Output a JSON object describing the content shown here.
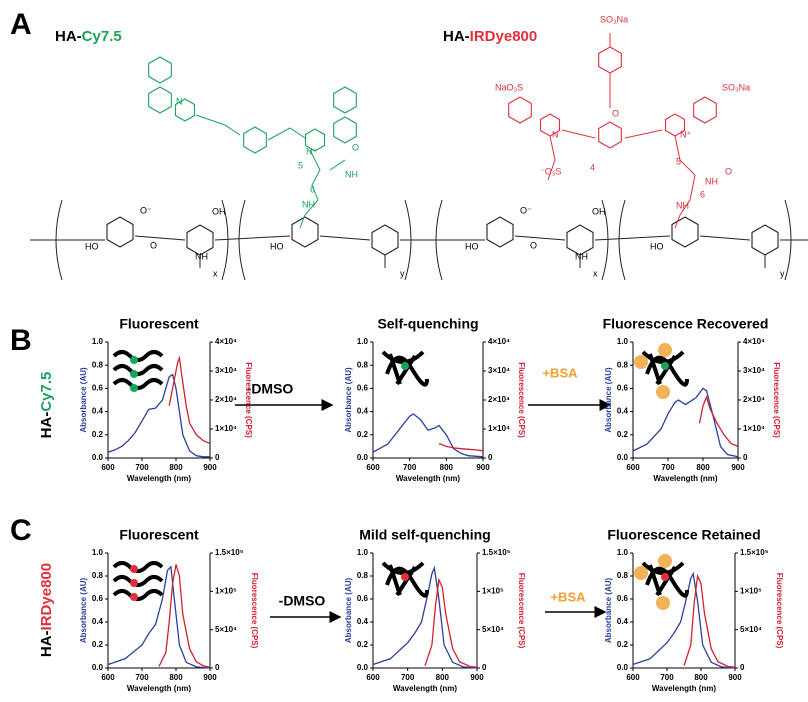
{
  "panel_labels": [
    "A",
    "B",
    "C"
  ],
  "panel_a": {
    "structures": [
      {
        "prefix": "HA-",
        "dye": "Cy7.5",
        "labels": [
          "N",
          "N⁺",
          "5",
          "6",
          "O",
          "NH",
          "NH",
          "O⁻",
          "O",
          "HO",
          "HO",
          "OH",
          "NH",
          "x",
          "y"
        ]
      },
      {
        "prefix": "HA-",
        "dye": "IRDye800",
        "labels": [
          "SO₃Na",
          "NaO₃S",
          "SO₃Na",
          "O",
          "N",
          "N⁺",
          "⁻O₃S",
          "4",
          "5",
          "6",
          "O",
          "NH",
          "NH",
          "O⁻",
          "O",
          "HO",
          "HO",
          "OH",
          "NH",
          "x",
          "y"
        ]
      }
    ]
  },
  "rows": [
    {
      "prefix": "HA-",
      "dye": "Cy7.5"
    },
    {
      "prefix": "HA-",
      "dye": "IRDye800"
    }
  ],
  "arrows": [
    {
      "label": "-DMSO"
    },
    {
      "label": "+BSA"
    },
    {
      "label": "-DMSO"
    },
    {
      "label": "+BSA"
    }
  ],
  "chart_data": [
    {
      "type": "line",
      "title": "Fluorescent",
      "x_label": "Wavelength (nm)",
      "y_label": "Absorbance (AU)",
      "y2_label": "Fluorescence (CPS)",
      "xlim": [
        600,
        900
      ],
      "xticks": [
        600,
        700,
        800,
        900
      ],
      "ylim": [
        0,
        1
      ],
      "yticks": [
        {
          "value": 0,
          "label": "0.0"
        },
        0.2,
        0.4,
        0.6,
        0.8,
        {
          "value": 1,
          "label": "1.0"
        }
      ],
      "y2lim": [
        0,
        40000
      ],
      "y2ticks": [
        0,
        {
          "value": 10000,
          "label": "1×10⁴"
        },
        {
          "value": 20000,
          "label": "2×10⁴"
        },
        {
          "value": 30000,
          "label": "3×10⁴"
        },
        {
          "value": 40000,
          "label": "4×10⁴"
        }
      ],
      "series": [
        {
          "color": "#2b3f9e",
          "axis": "y",
          "x": [
            600,
            620,
            640,
            660,
            680,
            700,
            720,
            740,
            760,
            780,
            790,
            800,
            820,
            840,
            860,
            880,
            900
          ],
          "values": [
            0.05,
            0.07,
            0.1,
            0.15,
            0.22,
            0.32,
            0.42,
            0.43,
            0.5,
            0.7,
            0.72,
            0.6,
            0.2,
            0.06,
            0.02,
            0.01,
            0.01
          ]
        },
        {
          "color": "#d3202f",
          "axis": "y2",
          "x": [
            780,
            790,
            800,
            805,
            810,
            820,
            830,
            840,
            860,
            880,
            900
          ],
          "values": [
            18000,
            24000,
            30000,
            33000,
            34500,
            26000,
            18000,
            12000,
            8000,
            6000,
            5000
          ]
        }
      ]
    },
    {
      "type": "line",
      "title": "Self-quenching",
      "x_label": "Wavelength (nm)",
      "y_label": "Absorbance (AU)",
      "y2_label": "Fluorescence (CPS)",
      "xlim": [
        600,
        900
      ],
      "xticks": [
        600,
        700,
        800,
        900
      ],
      "ylim": [
        0,
        1
      ],
      "yticks": [
        {
          "value": 0,
          "label": "0.0"
        },
        0.2,
        0.4,
        0.6,
        0.8,
        {
          "value": 1,
          "label": "1.0"
        }
      ],
      "y2lim": [
        0,
        40000
      ],
      "y2ticks": [
        0,
        {
          "value": 10000,
          "label": "1×10⁴"
        },
        {
          "value": 20000,
          "label": "2×10⁴"
        },
        {
          "value": 30000,
          "label": "3×10⁴"
        },
        {
          "value": 40000,
          "label": "4×10⁴"
        }
      ],
      "series": [
        {
          "color": "#2b3f9e",
          "axis": "y",
          "x": [
            600,
            640,
            680,
            700,
            710,
            730,
            750,
            770,
            780,
            800,
            820,
            840,
            860,
            900
          ],
          "values": [
            0.05,
            0.12,
            0.28,
            0.36,
            0.38,
            0.33,
            0.24,
            0.26,
            0.28,
            0.2,
            0.08,
            0.04,
            0.02,
            0.01
          ]
        },
        {
          "color": "#d3202f",
          "axis": "y2",
          "x": [
            780,
            800,
            820,
            840,
            860,
            880,
            900
          ],
          "values": [
            5000,
            4000,
            3500,
            3200,
            3000,
            2800,
            2500
          ]
        }
      ]
    },
    {
      "type": "line",
      "title": "Fluorescence Recovered",
      "x_label": "Wavelength (nm)",
      "y_label": "Absorbance (AU)",
      "y2_label": "Fluorescence (CPS)",
      "xlim": [
        600,
        900
      ],
      "xticks": [
        600,
        700,
        800,
        900
      ],
      "ylim": [
        0,
        1
      ],
      "yticks": [
        {
          "value": 0,
          "label": "0.0"
        },
        0.2,
        0.4,
        0.6,
        0.8,
        {
          "value": 1,
          "label": "1.0"
        }
      ],
      "y2lim": [
        0,
        40000
      ],
      "y2ticks": [
        0,
        {
          "value": 10000,
          "label": "1×10⁴"
        },
        {
          "value": 20000,
          "label": "2×10⁴"
        },
        {
          "value": 30000,
          "label": "3×10⁴"
        },
        {
          "value": 40000,
          "label": "4×10⁴"
        }
      ],
      "series": [
        {
          "color": "#2b3f9e",
          "axis": "y",
          "x": [
            600,
            640,
            680,
            700,
            720,
            730,
            750,
            780,
            800,
            810,
            830,
            850,
            870,
            900
          ],
          "values": [
            0.06,
            0.12,
            0.25,
            0.38,
            0.48,
            0.5,
            0.46,
            0.52,
            0.6,
            0.58,
            0.35,
            0.1,
            0.03,
            0.01
          ]
        },
        {
          "color": "#d3202f",
          "axis": "y2",
          "x": [
            790,
            800,
            810,
            820,
            840,
            860,
            880,
            900
          ],
          "values": [
            12000,
            18000,
            21000,
            17000,
            12000,
            8000,
            5000,
            4000
          ]
        }
      ]
    },
    {
      "type": "line",
      "title": "Fluorescent",
      "x_label": "Wavelength (nm)",
      "y_label": "Absorbance (AU)",
      "y2_label": "Fluorescence (CPS)",
      "xlim": [
        600,
        900
      ],
      "xticks": [
        600,
        700,
        800,
        900
      ],
      "ylim": [
        0,
        1
      ],
      "yticks": [
        {
          "value": 0,
          "label": "0.0"
        },
        0.2,
        0.4,
        0.6,
        0.8,
        {
          "value": 1,
          "label": "1.0"
        }
      ],
      "y2lim": [
        0,
        150000
      ],
      "y2ticks": [
        0,
        {
          "value": 50000,
          "label": "5×10⁴"
        },
        {
          "value": 100000,
          "label": "1×10⁵"
        },
        {
          "value": 150000,
          "label": "1.5×10⁵"
        }
      ],
      "series": [
        {
          "color": "#2b3f9e",
          "axis": "y",
          "x": [
            600,
            650,
            700,
            720,
            740,
            760,
            775,
            785,
            795,
            810,
            830,
            860,
            900
          ],
          "values": [
            0.03,
            0.08,
            0.2,
            0.3,
            0.38,
            0.6,
            0.85,
            0.88,
            0.6,
            0.2,
            0.05,
            0.01,
            0
          ]
        },
        {
          "color": "#d3202f",
          "axis": "y2",
          "x": [
            750,
            770,
            780,
            790,
            800,
            810,
            820,
            840,
            860,
            880,
            900
          ],
          "values": [
            2000,
            20000,
            60000,
            110000,
            135000,
            120000,
            70000,
            25000,
            8000,
            3000,
            1000
          ]
        }
      ]
    },
    {
      "type": "line",
      "title": "Mild self-quenching",
      "x_label": "Wavelength (nm)",
      "y_label": "Absorbance (AU)",
      "y2_label": "Fluorescence (CPS)",
      "xlim": [
        600,
        900
      ],
      "xticks": [
        600,
        700,
        800,
        900
      ],
      "ylim": [
        0,
        1
      ],
      "yticks": [
        {
          "value": 0,
          "label": "0.0"
        },
        0.2,
        0.4,
        0.6,
        0.8,
        {
          "value": 1,
          "label": "1.0"
        }
      ],
      "y2lim": [
        0,
        150000
      ],
      "y2ticks": [
        0,
        {
          "value": 50000,
          "label": "5×10⁴"
        },
        {
          "value": 100000,
          "label": "1×10⁵"
        },
        {
          "value": 150000,
          "label": "1.5×10⁵"
        }
      ],
      "series": [
        {
          "color": "#2b3f9e",
          "axis": "y",
          "x": [
            600,
            650,
            700,
            720,
            740,
            755,
            770,
            777,
            790,
            805,
            830,
            860,
            900
          ],
          "values": [
            0.03,
            0.08,
            0.22,
            0.3,
            0.4,
            0.6,
            0.82,
            0.87,
            0.6,
            0.2,
            0.05,
            0.01,
            0
          ]
        },
        {
          "color": "#d3202f",
          "axis": "y2",
          "x": [
            750,
            770,
            780,
            790,
            800,
            810,
            830,
            850,
            880,
            900
          ],
          "values": [
            3000,
            30000,
            80000,
            115000,
            105000,
            70000,
            25000,
            8000,
            2000,
            1000
          ]
        }
      ]
    },
    {
      "type": "line",
      "title": "Fluorescence Retained",
      "x_label": "Wavelength (nm)",
      "y_label": "Absorbance (AU)",
      "y2_label": "Fluorescence (CPS)",
      "xlim": [
        600,
        900
      ],
      "xticks": [
        600,
        700,
        800,
        900
      ],
      "ylim": [
        0,
        1
      ],
      "yticks": [
        {
          "value": 0,
          "label": "0.0"
        },
        0.2,
        0.4,
        0.6,
        0.8,
        {
          "value": 1,
          "label": "1.0"
        }
      ],
      "y2lim": [
        0,
        150000
      ],
      "y2ticks": [
        0,
        {
          "value": 50000,
          "label": "5×10⁴"
        },
        {
          "value": 100000,
          "label": "1×10⁵"
        },
        {
          "value": 150000,
          "label": "1.5×10⁵"
        }
      ],
      "series": [
        {
          "color": "#2b3f9e",
          "axis": "y",
          "x": [
            600,
            650,
            700,
            720,
            740,
            755,
            770,
            777,
            790,
            805,
            830,
            860,
            900
          ],
          "values": [
            0.03,
            0.08,
            0.22,
            0.3,
            0.4,
            0.58,
            0.78,
            0.82,
            0.58,
            0.2,
            0.05,
            0.01,
            0
          ]
        },
        {
          "color": "#d3202f",
          "axis": "y2",
          "x": [
            750,
            770,
            780,
            790,
            800,
            810,
            830,
            850,
            880,
            900
          ],
          "values": [
            3000,
            30000,
            85000,
            120000,
            110000,
            72000,
            25000,
            8000,
            2000,
            1000
          ]
        }
      ]
    }
  ]
}
